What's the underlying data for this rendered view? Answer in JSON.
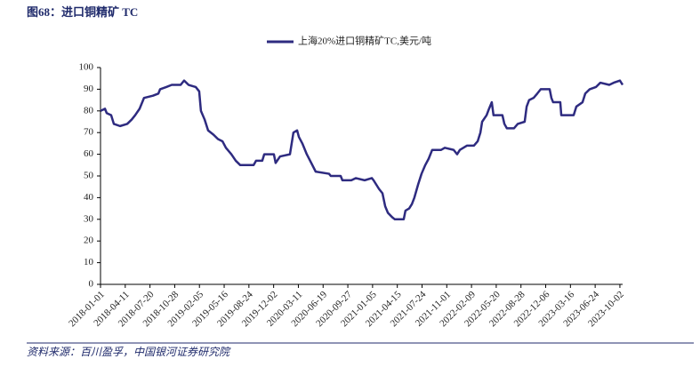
{
  "chart_data": {
    "type": "line",
    "title": "图68：进口铜精矿 TC",
    "source": "资料来源：百川盈孚，中国银河证券研究院",
    "legend": "top",
    "xlim": [
      "2018-01-01",
      "2023-10-13"
    ],
    "xticks": [
      "2018-01-01",
      "2018-04-11",
      "2018-07-20",
      "2018-10-28",
      "2019-02-05",
      "2019-05-16",
      "2019-08-24",
      "2019-12-02",
      "2020-03-11",
      "2020-06-19",
      "2020-09-27",
      "2021-01-05",
      "2021-04-15",
      "2021-07-24",
      "2021-11-01",
      "2022-02-09",
      "2022-05-20",
      "2022-08-28",
      "2022-12-06",
      "2023-03-16",
      "2023-06-24",
      "2023-10-02"
    ],
    "ylim": [
      0,
      100
    ],
    "yticks": [
      0,
      10,
      20,
      30,
      40,
      50,
      60,
      70,
      80,
      90,
      100
    ],
    "x": [
      "2018-01-01",
      "2018-01-19",
      "2018-01-26",
      "2018-02-13",
      "2018-02-24",
      "2018-03-21",
      "2018-04-19",
      "2018-05-07",
      "2018-05-21",
      "2018-06-08",
      "2018-06-26",
      "2018-08-01",
      "2018-08-23",
      "2018-08-30",
      "2018-09-24",
      "2018-10-16",
      "2018-11-21",
      "2018-12-05",
      "2018-12-23",
      "2019-01-21",
      "2019-02-04",
      "2019-02-11",
      "2019-02-26",
      "2019-03-12",
      "2019-04-03",
      "2019-04-21",
      "2019-05-09",
      "2019-05-23",
      "2019-06-14",
      "2019-07-02",
      "2019-07-20",
      "2019-09-12",
      "2019-09-22",
      "2019-10-17",
      "2019-10-25",
      "2019-12-03",
      "2019-12-10",
      "2019-12-28",
      "2020-02-06",
      "2020-02-20",
      "2020-03-06",
      "2020-03-13",
      "2020-03-27",
      "2020-04-14",
      "2020-05-02",
      "2020-05-20",
      "2020-07-13",
      "2020-07-20",
      "2020-08-29",
      "2020-09-05",
      "2020-10-11",
      "2020-10-29",
      "2020-12-04",
      "2021-01-02",
      "2021-01-09",
      "2021-01-31",
      "2021-02-14",
      "2021-02-25",
      "2021-03-08",
      "2021-03-25",
      "2021-04-05",
      "2021-05-11",
      "2021-05-18",
      "2021-06-02",
      "2021-06-13",
      "2021-06-23",
      "2021-07-08",
      "2021-07-22",
      "2021-08-06",
      "2021-08-20",
      "2021-09-03",
      "2021-10-09",
      "2021-10-24",
      "2021-11-29",
      "2021-12-13",
      "2021-12-24",
      "2022-01-22",
      "2022-02-19",
      "2022-03-06",
      "2022-03-17",
      "2022-03-24",
      "2022-04-11",
      "2022-04-21",
      "2022-05-02",
      "2022-05-09",
      "2022-06-14",
      "2022-06-22",
      "2022-07-02",
      "2022-07-31",
      "2022-08-15",
      "2022-09-12",
      "2022-09-20",
      "2022-09-30",
      "2022-10-18",
      "2022-11-02",
      "2022-11-16",
      "2022-12-22",
      "2022-12-29",
      "2023-01-05",
      "2023-02-03",
      "2023-02-07",
      "2023-03-29",
      "2023-04-09",
      "2023-05-04",
      "2023-05-15",
      "2023-06-02",
      "2023-06-27",
      "2023-07-15",
      "2023-08-20",
      "2023-09-07",
      "2023-10-02",
      "2023-10-13"
    ],
    "series": [
      {
        "name": "上海20%进口铜精矿TC,美元/吨",
        "color": "#2e2b80",
        "values": [
          80,
          81,
          79,
          78,
          74,
          73,
          74,
          76,
          78,
          81,
          86,
          87,
          88,
          90,
          91,
          92,
          92,
          94,
          92,
          91,
          89,
          80,
          76,
          71,
          69,
          67,
          66,
          63,
          60,
          57,
          55,
          55,
          57,
          57,
          60,
          60,
          56,
          59,
          60,
          70,
          71,
          68,
          65,
          60,
          56,
          52,
          51,
          50,
          50,
          48,
          48,
          49,
          48,
          49,
          48,
          44,
          42,
          36,
          33,
          31,
          30,
          30,
          34,
          35,
          37,
          40,
          46,
          51,
          55,
          58,
          62,
          62,
          63,
          62,
          60,
          62,
          64,
          64,
          66,
          70,
          75,
          78,
          81,
          84,
          78,
          78,
          74,
          72,
          72,
          74,
          75,
          82,
          85,
          86,
          88,
          90,
          90,
          86,
          84,
          84,
          78,
          78,
          82,
          84,
          88,
          90,
          91,
          93,
          92,
          93,
          94,
          92
        ]
      }
    ]
  }
}
